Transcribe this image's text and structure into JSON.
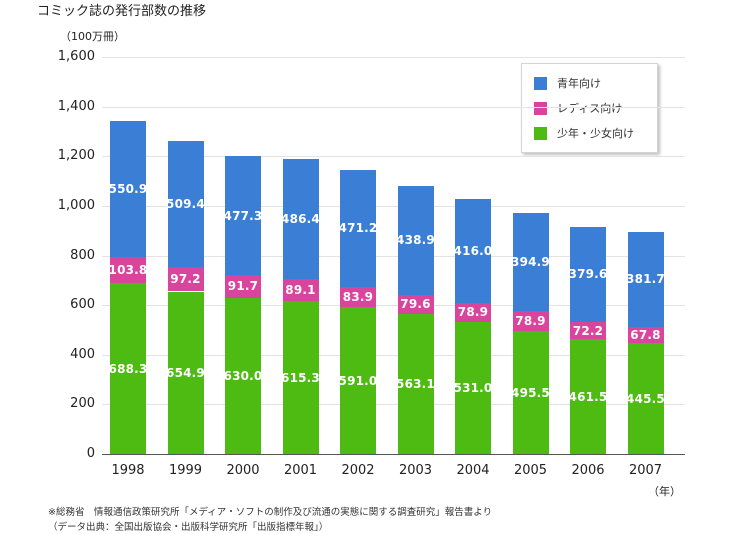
{
  "title": "コミック誌の発行部数の推移",
  "unit_label": "（100万冊）",
  "x_unit_label": "（年）",
  "legend": [
    {
      "label": "青年向け",
      "color": "#3a7fd5"
    },
    {
      "label": "レディス向け",
      "color": "#d9459c"
    },
    {
      "label": "少年・少女向け",
      "color": "#4dbb12"
    }
  ],
  "notes": [
    "※総務省　情報通信政策研究所「メディア・ソフトの制作及び流通の実態に関する調査研究」報告書より",
    "（データ出典：全国出版協会・出版科学研究所「出版指標年報」）"
  ],
  "chart_data": {
    "type": "bar",
    "stacked": true,
    "title": "コミック誌の発行部数の推移",
    "ylabel": "（100万冊）",
    "xlabel": "（年）",
    "ylim": [
      0,
      1600
    ],
    "yticks": [
      "0",
      "200",
      "400",
      "600",
      "800",
      "1,000",
      "1,200",
      "1,400",
      "1,600"
    ],
    "categories": [
      "1998",
      "1999",
      "2000",
      "2001",
      "2002",
      "2003",
      "2004",
      "2005",
      "2006",
      "2007"
    ],
    "series": [
      {
        "name": "少年・少女向け",
        "color": "#4dbb12",
        "values": [
          688.3,
          654.9,
          630.0,
          615.3,
          591.0,
          563.1,
          531.0,
          495.5,
          461.5,
          445.5
        ],
        "labels": [
          "688.3",
          "654.9",
          "630.0",
          "615.3",
          "591.0",
          "563.1",
          "531.0",
          "495.5",
          "461.5",
          "445.5"
        ]
      },
      {
        "name": "レディス向け",
        "color": "#d9459c",
        "values": [
          103.8,
          97.2,
          91.7,
          89.1,
          83.9,
          79.6,
          78.9,
          78.9,
          72.2,
          67.8
        ],
        "labels": [
          "103.8",
          "97.2",
          "91.7",
          "89.1",
          "83.9",
          "79.6",
          "78.9",
          "78.9",
          "72.2",
          "67.8"
        ]
      },
      {
        "name": "青年向け",
        "color": "#3a7fd5",
        "values": [
          550.9,
          509.4,
          477.3,
          486.4,
          471.2,
          438.9,
          416.0,
          394.9,
          379.6,
          381.7
        ],
        "labels": [
          "550.9",
          "509.4",
          "477.3",
          "486.4",
          "471.2",
          "438.9",
          "416.0",
          "394.9",
          "379.6",
          "381.7"
        ]
      }
    ],
    "grid": true,
    "legend_position": "top-right"
  }
}
